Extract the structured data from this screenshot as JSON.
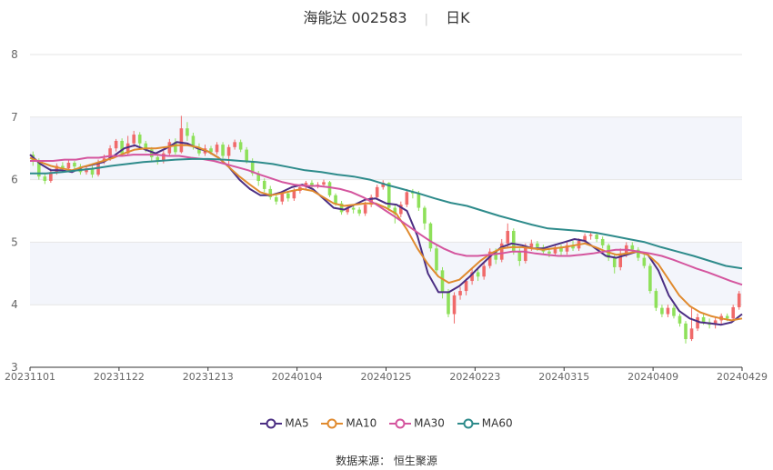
{
  "title": {
    "name": "海能达",
    "code": "002583",
    "period": "日K"
  },
  "source": {
    "label": "数据来源：",
    "name": "恒生聚源"
  },
  "legend": [
    {
      "name": "MA5",
      "color": "#4b2e83"
    },
    {
      "name": "MA10",
      "color": "#e08a2e"
    },
    {
      "name": "MA30",
      "color": "#d4559e"
    },
    {
      "name": "MA60",
      "color": "#2e8b8b"
    }
  ],
  "colors": {
    "up": "#f06a6a",
    "down": "#8ee05a",
    "band": "#f3f5fb",
    "grid": "#e6e6e6"
  },
  "chart_data": {
    "type": "candlestick",
    "ylim": [
      3,
      8
    ],
    "y_ticks": [
      "3",
      "4",
      "5",
      "6",
      "7",
      "8"
    ],
    "x_tick_labels": [
      "20231101",
      "20231122",
      "20231213",
      "20240104",
      "20240125",
      "20240223",
      "20240315",
      "20240409",
      "20240429"
    ],
    "n_days": 120,
    "candles": [
      [
        6.4,
        6.3,
        6.45,
        6.22
      ],
      [
        6.3,
        6.05,
        6.34,
        6.0
      ],
      [
        6.05,
        5.98,
        6.1,
        5.93
      ],
      [
        5.98,
        6.12,
        6.18,
        5.95
      ],
      [
        6.12,
        6.22,
        6.26,
        6.08
      ],
      [
        6.22,
        6.18,
        6.28,
        6.12
      ],
      [
        6.18,
        6.27,
        6.32,
        6.14
      ],
      [
        6.27,
        6.21,
        6.3,
        6.16
      ],
      [
        6.21,
        6.12,
        6.25,
        6.08
      ],
      [
        6.12,
        6.18,
        6.22,
        6.08
      ],
      [
        6.18,
        6.08,
        6.22,
        6.03
      ],
      [
        6.08,
        6.28,
        6.32,
        6.05
      ],
      [
        6.28,
        6.34,
        6.4,
        6.25
      ],
      [
        6.34,
        6.5,
        6.55,
        6.3
      ],
      [
        6.5,
        6.62,
        6.65,
        6.45
      ],
      [
        6.62,
        6.42,
        6.66,
        6.38
      ],
      [
        6.42,
        6.58,
        6.7,
        6.4
      ],
      [
        6.58,
        6.72,
        6.78,
        6.52
      ],
      [
        6.72,
        6.58,
        6.76,
        6.52
      ],
      [
        6.58,
        6.48,
        6.62,
        6.44
      ],
      [
        6.48,
        6.36,
        6.52,
        6.3
      ],
      [
        6.36,
        6.3,
        6.4,
        6.24
      ],
      [
        6.3,
        6.42,
        6.46,
        6.26
      ],
      [
        6.42,
        6.6,
        6.65,
        6.38
      ],
      [
        6.6,
        6.44,
        6.66,
        6.4
      ],
      [
        6.44,
        6.82,
        7.02,
        6.42
      ],
      [
        6.82,
        6.7,
        6.92,
        6.62
      ],
      [
        6.7,
        6.52,
        6.75,
        6.48
      ],
      [
        6.52,
        6.42,
        6.58,
        6.38
      ],
      [
        6.42,
        6.5,
        6.56,
        6.38
      ],
      [
        6.5,
        6.44,
        6.54,
        6.4
      ],
      [
        6.44,
        6.56,
        6.6,
        6.4
      ],
      [
        6.56,
        6.38,
        6.6,
        6.34
      ],
      [
        6.38,
        6.52,
        6.56,
        6.25
      ],
      [
        6.52,
        6.6,
        6.64,
        6.48
      ],
      [
        6.6,
        6.48,
        6.64,
        6.44
      ],
      [
        6.48,
        6.3,
        6.52,
        6.26
      ],
      [
        6.3,
        6.1,
        6.34,
        6.06
      ],
      [
        6.1,
        5.98,
        6.14,
        5.9
      ],
      [
        5.98,
        5.85,
        6.02,
        5.8
      ],
      [
        5.85,
        5.72,
        5.9,
        5.68
      ],
      [
        5.72,
        5.65,
        5.78,
        5.6
      ],
      [
        5.65,
        5.78,
        5.82,
        5.6
      ],
      [
        5.78,
        5.7,
        5.82,
        5.65
      ],
      [
        5.7,
        5.82,
        5.86,
        5.66
      ],
      [
        5.82,
        5.88,
        5.92,
        5.78
      ],
      [
        5.88,
        5.95,
        5.98,
        5.84
      ],
      [
        5.95,
        5.9,
        5.99,
        5.86
      ],
      [
        5.9,
        5.92,
        5.96,
        5.86
      ],
      [
        5.92,
        5.96,
        6.0,
        5.88
      ],
      [
        5.96,
        5.75,
        5.98,
        5.72
      ],
      [
        5.75,
        5.62,
        5.78,
        5.58
      ],
      [
        5.62,
        5.48,
        5.66,
        5.44
      ],
      [
        5.48,
        5.55,
        5.6,
        5.44
      ],
      [
        5.55,
        5.52,
        5.6,
        5.46
      ],
      [
        5.52,
        5.46,
        5.56,
        5.42
      ],
      [
        5.46,
        5.6,
        5.65,
        5.42
      ],
      [
        5.6,
        5.72,
        5.76,
        5.56
      ],
      [
        5.72,
        5.88,
        5.92,
        5.68
      ],
      [
        5.88,
        5.95,
        5.99,
        5.84
      ],
      [
        5.95,
        5.55,
        5.96,
        5.5
      ],
      [
        5.55,
        5.45,
        5.6,
        5.3
      ],
      [
        5.45,
        5.6,
        5.65,
        5.4
      ],
      [
        5.6,
        5.8,
        5.85,
        5.56
      ],
      [
        5.8,
        5.78,
        5.85,
        5.7
      ],
      [
        5.78,
        5.55,
        5.82,
        5.5
      ],
      [
        5.55,
        5.3,
        5.58,
        5.2
      ],
      [
        5.3,
        4.9,
        5.32,
        4.85
      ],
      [
        4.9,
        4.55,
        4.95,
        4.48
      ],
      [
        4.55,
        4.2,
        4.6,
        4.1
      ],
      [
        4.2,
        3.85,
        4.25,
        3.8
      ],
      [
        3.85,
        4.15,
        4.2,
        3.7
      ],
      [
        4.15,
        4.22,
        4.28,
        4.08
      ],
      [
        4.22,
        4.38,
        4.42,
        4.15
      ],
      [
        4.38,
        4.52,
        4.58,
        4.32
      ],
      [
        4.52,
        4.45,
        4.58,
        4.38
      ],
      [
        4.45,
        4.62,
        4.68,
        4.4
      ],
      [
        4.62,
        4.85,
        4.9,
        4.58
      ],
      [
        4.85,
        4.72,
        4.9,
        4.65
      ],
      [
        4.72,
        4.98,
        5.05,
        4.68
      ],
      [
        4.98,
        5.18,
        5.3,
        4.92
      ],
      [
        5.18,
        4.85,
        5.22,
        4.8
      ],
      [
        4.85,
        4.7,
        4.9,
        4.62
      ],
      [
        4.7,
        4.92,
        4.98,
        4.66
      ],
      [
        4.92,
        4.98,
        5.04,
        4.86
      ],
      [
        4.98,
        4.92,
        5.02,
        4.86
      ],
      [
        4.92,
        4.85,
        4.96,
        4.8
      ],
      [
        4.85,
        4.82,
        4.9,
        4.76
      ],
      [
        4.82,
        4.92,
        4.97,
        4.78
      ],
      [
        4.92,
        4.85,
        4.96,
        4.78
      ],
      [
        4.85,
        4.95,
        5.0,
        4.8
      ],
      [
        4.95,
        4.9,
        5.02,
        4.86
      ],
      [
        4.9,
        5.02,
        5.06,
        4.86
      ],
      [
        5.02,
        5.1,
        5.14,
        4.98
      ],
      [
        5.1,
        5.12,
        5.16,
        5.04
      ],
      [
        5.12,
        5.05,
        5.16,
        5.0
      ],
      [
        5.05,
        4.95,
        5.09,
        4.9
      ],
      [
        4.95,
        4.75,
        4.98,
        4.7
      ],
      [
        4.75,
        4.6,
        4.8,
        4.5
      ],
      [
        4.6,
        4.8,
        4.9,
        4.55
      ],
      [
        4.8,
        4.95,
        5.0,
        4.76
      ],
      [
        4.95,
        4.88,
        5.0,
        4.82
      ],
      [
        4.88,
        4.75,
        4.92,
        4.7
      ],
      [
        4.75,
        4.62,
        4.8,
        4.58
      ],
      [
        4.62,
        4.22,
        4.66,
        4.18
      ],
      [
        4.22,
        3.95,
        4.26,
        3.9
      ],
      [
        3.95,
        3.85,
        4.0,
        3.8
      ],
      [
        3.85,
        3.95,
        4.0,
        3.8
      ],
      [
        3.95,
        3.82,
        4.0,
        3.78
      ],
      [
        3.82,
        3.7,
        3.86,
        3.65
      ],
      [
        3.7,
        3.45,
        3.74,
        3.38
      ],
      [
        3.45,
        3.62,
        3.95,
        3.42
      ],
      [
        3.62,
        3.8,
        3.86,
        3.58
      ],
      [
        3.8,
        3.72,
        3.85,
        3.68
      ],
      [
        3.72,
        3.68,
        3.78,
        3.62
      ],
      [
        3.68,
        3.75,
        3.8,
        3.62
      ],
      [
        3.75,
        3.82,
        3.86,
        3.68
      ],
      [
        3.82,
        3.78,
        3.86,
        3.74
      ],
      [
        3.78,
        3.96,
        4.0,
        3.75
      ],
      [
        3.96,
        4.18,
        4.22,
        3.92
      ]
    ],
    "series": [
      {
        "name": "MA5",
        "values": [
          6.4,
          6.25,
          6.15,
          6.15,
          6.12,
          6.2,
          6.24,
          6.28,
          6.38,
          6.5,
          6.55,
          6.48,
          6.42,
          6.5,
          6.6,
          6.58,
          6.5,
          6.45,
          6.35,
          6.2,
          6.0,
          5.85,
          5.75,
          5.75,
          5.8,
          5.88,
          5.92,
          5.85,
          5.7,
          5.55,
          5.52,
          5.6,
          5.68,
          5.7,
          5.62,
          5.6,
          5.5,
          5.1,
          4.5,
          4.2,
          4.2,
          4.3,
          4.45,
          4.62,
          4.78,
          4.92,
          4.98,
          4.95,
          4.9,
          4.9,
          4.95,
          5.0,
          5.05,
          5.02,
          4.9,
          4.78,
          4.75,
          4.8,
          4.85,
          4.8,
          4.55,
          4.15,
          3.9,
          3.78,
          3.72,
          3.7,
          3.68,
          3.72,
          3.85
        ]
      },
      {
        "name": "MA10",
        "values": [
          6.35,
          6.28,
          6.22,
          6.18,
          6.15,
          6.2,
          6.25,
          6.3,
          6.35,
          6.42,
          6.48,
          6.5,
          6.5,
          6.52,
          6.55,
          6.55,
          6.52,
          6.45,
          6.35,
          6.2,
          6.05,
          5.92,
          5.8,
          5.75,
          5.78,
          5.82,
          5.85,
          5.82,
          5.72,
          5.62,
          5.58,
          5.6,
          5.62,
          5.62,
          5.55,
          5.45,
          5.2,
          4.9,
          4.65,
          4.45,
          4.35,
          4.4,
          4.55,
          4.7,
          4.82,
          4.9,
          4.92,
          4.92,
          4.9,
          4.88,
          4.9,
          4.92,
          4.95,
          4.98,
          4.92,
          4.85,
          4.8,
          4.82,
          4.85,
          4.8,
          4.65,
          4.4,
          4.15,
          3.98,
          3.88,
          3.82,
          3.78,
          3.75,
          3.78
        ]
      },
      {
        "name": "MA30",
        "values": [
          6.3,
          6.3,
          6.3,
          6.32,
          6.32,
          6.35,
          6.35,
          6.38,
          6.38,
          6.4,
          6.4,
          6.4,
          6.38,
          6.38,
          6.35,
          6.33,
          6.3,
          6.25,
          6.2,
          6.15,
          6.08,
          6.02,
          5.96,
          5.92,
          5.9,
          5.9,
          5.88,
          5.85,
          5.8,
          5.72,
          5.62,
          5.5,
          5.38,
          5.25,
          5.12,
          5.0,
          4.9,
          4.82,
          4.78,
          4.78,
          4.8,
          4.82,
          4.85,
          4.85,
          4.82,
          4.8,
          4.78,
          4.78,
          4.8,
          4.82,
          4.85,
          4.88,
          4.88,
          4.85,
          4.82,
          4.78,
          4.72,
          4.65,
          4.58,
          4.52,
          4.45,
          4.38,
          4.32
        ]
      },
      {
        "name": "MA60",
        "values": [
          6.1,
          6.1,
          6.12,
          6.15,
          6.18,
          6.22,
          6.25,
          6.28,
          6.3,
          6.32,
          6.33,
          6.33,
          6.32,
          6.3,
          6.28,
          6.25,
          6.2,
          6.15,
          6.12,
          6.08,
          6.05,
          6.0,
          5.92,
          5.85,
          5.78,
          5.7,
          5.63,
          5.58,
          5.5,
          5.42,
          5.35,
          5.28,
          5.22,
          5.2,
          5.18,
          5.15,
          5.1,
          5.05,
          5.0,
          4.92,
          4.85,
          4.78,
          4.7,
          4.62,
          4.58
        ]
      }
    ]
  }
}
